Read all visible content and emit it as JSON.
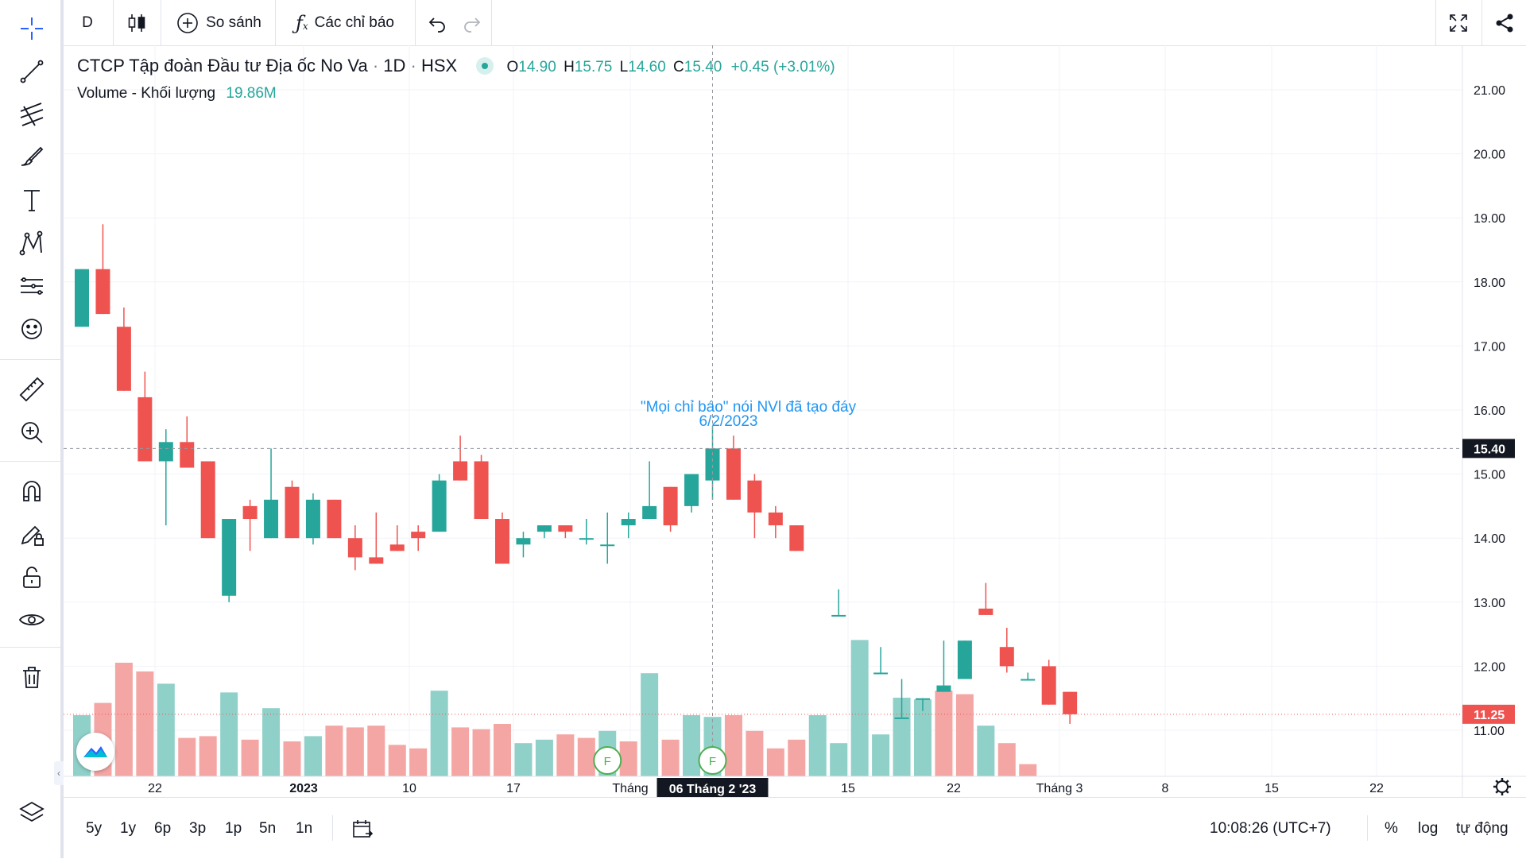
{
  "toolbar": {
    "interval": "D",
    "compare_label": "So sánh",
    "indicators_label": "Các chỉ báo"
  },
  "legend": {
    "symbol_name": "CTCP Tập đoàn Đầu tư Địa ốc No Va",
    "interval": "1D",
    "exchange": "HSX",
    "o_label": "O",
    "o": "14.90",
    "h_label": "H",
    "h": "15.75",
    "l_label": "L",
    "l": "14.60",
    "c_label": "C",
    "c": "15.40",
    "change": "+0.45 (+3.01%)",
    "volume_label": "Volume - Khối lượng",
    "volume_value": "19.86M"
  },
  "colors": {
    "up": "#26a69a",
    "down": "#ef5350",
    "up_vol": "#8fd0c9",
    "down_vol": "#f4a6a4",
    "annotation": "#2196f3"
  },
  "bottom": {
    "ranges": [
      "5y",
      "1y",
      "6p",
      "3p",
      "1p",
      "5n",
      "1n"
    ],
    "time": "10:08:26 (UTC+7)",
    "percent": "%",
    "log": "log",
    "auto": "tự động"
  },
  "chart_data": {
    "type": "candlestick",
    "y_axis_ticks": [
      "21.00",
      "20.00",
      "19.00",
      "18.00",
      "17.00",
      "16.00",
      "15.00",
      "14.00",
      "13.00",
      "12.00",
      "11.00"
    ],
    "ylim": [
      10.3,
      21.6
    ],
    "last_price_label": "15.40",
    "current_price_label": "11.25",
    "x_axis_labels": [
      "22",
      "2023",
      "10",
      "17",
      "Tháng",
      "15",
      "22",
      "Tháng 3",
      "8",
      "15",
      "22"
    ],
    "crosshair_date_label": "06 Tháng 2 '23",
    "annotation": {
      "text1": "\"Mọi chỉ báo\" nói NVl đã tạo đáy",
      "text2": "6/2/2023"
    },
    "event_marker": "F",
    "candles": [
      {
        "o": 17.3,
        "h": 18.2,
        "l": 17.3,
        "c": 18.2
      },
      {
        "o": 18.2,
        "h": 18.9,
        "l": 17.5,
        "c": 17.5
      },
      {
        "o": 17.3,
        "h": 17.6,
        "l": 16.3,
        "c": 16.3
      },
      {
        "o": 16.2,
        "h": 16.6,
        "l": 15.2,
        "c": 15.2
      },
      {
        "o": 15.2,
        "h": 15.7,
        "l": 14.2,
        "c": 15.5
      },
      {
        "o": 15.5,
        "h": 15.9,
        "l": 15.1,
        "c": 15.1
      },
      {
        "o": 15.2,
        "h": 15.2,
        "l": 14.0,
        "c": 14.0
      },
      {
        "o": 13.1,
        "h": 14.3,
        "l": 13.0,
        "c": 14.3
      },
      {
        "o": 14.5,
        "h": 14.6,
        "l": 13.8,
        "c": 14.3
      },
      {
        "o": 14.0,
        "h": 15.4,
        "l": 14.0,
        "c": 14.6
      },
      {
        "o": 14.8,
        "h": 14.9,
        "l": 14.0,
        "c": 14.0
      },
      {
        "o": 14.0,
        "h": 14.7,
        "l": 13.9,
        "c": 14.6
      },
      {
        "o": 14.6,
        "h": 14.6,
        "l": 14.0,
        "c": 14.0
      },
      {
        "o": 14.0,
        "h": 14.2,
        "l": 13.5,
        "c": 13.7
      },
      {
        "o": 13.7,
        "h": 14.4,
        "l": 13.6,
        "c": 13.6
      },
      {
        "o": 13.9,
        "h": 14.2,
        "l": 13.8,
        "c": 13.8
      },
      {
        "o": 14.1,
        "h": 14.2,
        "l": 13.8,
        "c": 14.0
      },
      {
        "o": 14.1,
        "h": 15.0,
        "l": 14.1,
        "c": 14.9
      },
      {
        "o": 15.2,
        "h": 15.6,
        "l": 14.9,
        "c": 14.9
      },
      {
        "o": 15.2,
        "h": 15.3,
        "l": 14.3,
        "c": 14.3
      },
      {
        "o": 14.3,
        "h": 14.4,
        "l": 13.6,
        "c": 13.6
      },
      {
        "o": 13.9,
        "h": 14.1,
        "l": 13.7,
        "c": 14.0
      },
      {
        "o": 14.1,
        "h": 14.2,
        "l": 14.0,
        "c": 14.2
      },
      {
        "o": 14.2,
        "h": 14.2,
        "l": 14.0,
        "c": 14.1
      },
      {
        "o": 14.0,
        "h": 14.3,
        "l": 13.9,
        "c": 14.0
      },
      {
        "o": 13.9,
        "h": 14.4,
        "l": 13.6,
        "c": 13.9
      },
      {
        "o": 14.2,
        "h": 14.4,
        "l": 14.0,
        "c": 14.3
      },
      {
        "o": 14.3,
        "h": 15.2,
        "l": 14.4,
        "c": 14.5
      },
      {
        "o": 14.8,
        "h": 14.8,
        "l": 14.1,
        "c": 14.2
      },
      {
        "o": 14.5,
        "h": 15.0,
        "l": 14.4,
        "c": 15.0
      },
      {
        "o": 14.9,
        "h": 15.75,
        "l": 14.6,
        "c": 15.4
      },
      {
        "o": 15.4,
        "h": 15.6,
        "l": 14.6,
        "c": 14.6
      },
      {
        "o": 14.9,
        "h": 15.0,
        "l": 14.0,
        "c": 14.4
      },
      {
        "o": 14.4,
        "h": 14.5,
        "l": 14.0,
        "c": 14.2
      },
      {
        "o": 14.2,
        "h": 14.2,
        "l": 13.8,
        "c": 13.8
      },
      null,
      {
        "o": 12.8,
        "h": 13.2,
        "l": 12.8,
        "c": 12.8
      },
      null,
      {
        "o": 11.9,
        "h": 12.3,
        "l": 11.9,
        "c": 11.9
      },
      {
        "o": 11.2,
        "h": 11.8,
        "l": 11.2,
        "c": 11.2
      },
      {
        "o": 11.5,
        "h": 11.5,
        "l": 11.3,
        "c": 11.5
      },
      {
        "o": 11.6,
        "h": 12.4,
        "l": 11.6,
        "c": 11.7
      },
      {
        "o": 11.8,
        "h": 12.4,
        "l": 11.8,
        "c": 12.4
      },
      {
        "o": 12.9,
        "h": 13.3,
        "l": 12.8,
        "c": 12.8
      },
      {
        "o": 12.3,
        "h": 12.6,
        "l": 11.9,
        "c": 12.0
      },
      {
        "o": 11.8,
        "h": 11.9,
        "l": 11.8,
        "c": 11.8
      },
      {
        "o": 12.0,
        "h": 12.1,
        "l": 11.4,
        "c": 11.4
      },
      {
        "o": 11.6,
        "h": 11.6,
        "l": 11.1,
        "c": 11.25
      }
    ],
    "volume": [
      {
        "v": 0.35,
        "up": true
      },
      {
        "v": 0.42,
        "up": false
      },
      {
        "v": 0.65,
        "up": false
      },
      {
        "v": 0.6,
        "up": false
      },
      {
        "v": 0.53,
        "up": true
      },
      {
        "v": 0.22,
        "up": false
      },
      {
        "v": 0.23,
        "up": false
      },
      {
        "v": 0.48,
        "up": true
      },
      {
        "v": 0.21,
        "up": false
      },
      {
        "v": 0.39,
        "up": true
      },
      {
        "v": 0.2,
        "up": false
      },
      {
        "v": 0.23,
        "up": true
      },
      {
        "v": 0.29,
        "up": false
      },
      {
        "v": 0.28,
        "up": false
      },
      {
        "v": 0.29,
        "up": false
      },
      {
        "v": 0.18,
        "up": false
      },
      {
        "v": 0.16,
        "up": false
      },
      {
        "v": 0.49,
        "up": true
      },
      {
        "v": 0.28,
        "up": false
      },
      {
        "v": 0.27,
        "up": false
      },
      {
        "v": 0.3,
        "up": false
      },
      {
        "v": 0.19,
        "up": true
      },
      {
        "v": 0.21,
        "up": true
      },
      {
        "v": 0.24,
        "up": false
      },
      {
        "v": 0.22,
        "up": false
      },
      {
        "v": 0.26,
        "up": true
      },
      {
        "v": 0.2,
        "up": false
      },
      {
        "v": 0.59,
        "up": true
      },
      {
        "v": 0.21,
        "up": false
      },
      {
        "v": 0.35,
        "up": true
      },
      {
        "v": 0.34,
        "up": true
      },
      {
        "v": 0.35,
        "up": false
      },
      {
        "v": 0.26,
        "up": false
      },
      {
        "v": 0.16,
        "up": false
      },
      {
        "v": 0.21,
        "up": false
      },
      {
        "v": 0.35,
        "up": true
      },
      {
        "v": 0.19,
        "up": true
      },
      {
        "v": 0.78,
        "up": true
      },
      {
        "v": 0.24,
        "up": true
      },
      {
        "v": 0.45,
        "up": true
      },
      {
        "v": 0.44,
        "up": true
      },
      {
        "v": 0.49,
        "up": false
      },
      {
        "v": 0.47,
        "up": false
      },
      {
        "v": 0.29,
        "up": true
      },
      {
        "v": 0.19,
        "up": false
      },
      {
        "v": 0.07,
        "up": false
      }
    ]
  }
}
